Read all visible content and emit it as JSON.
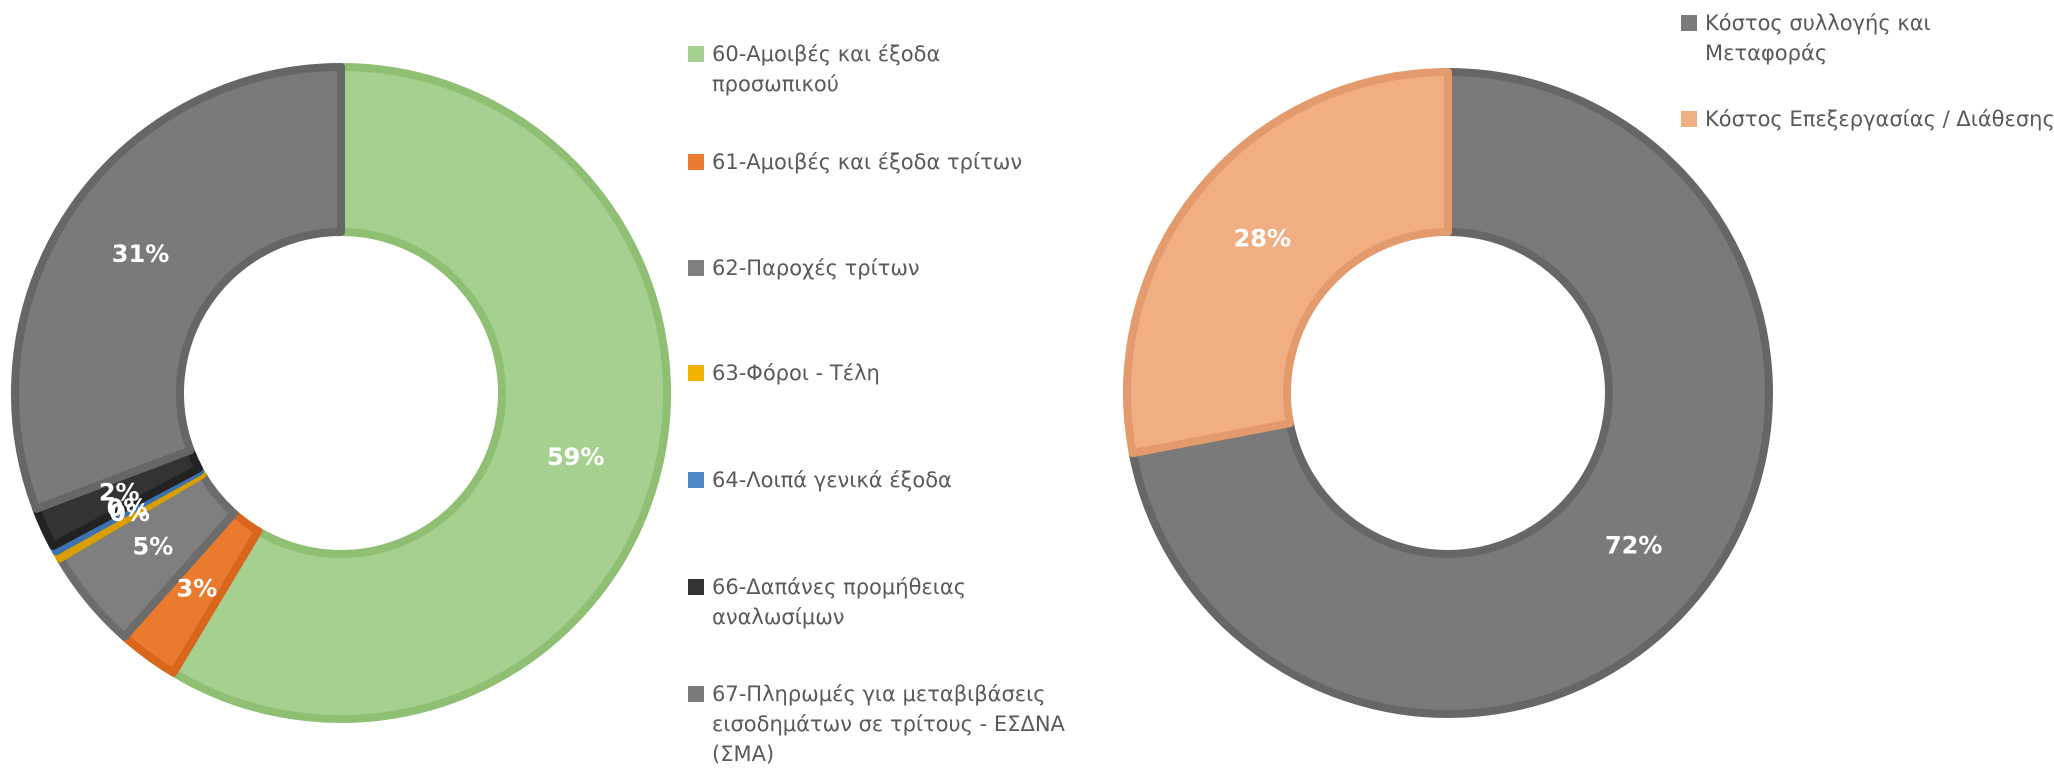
{
  "chart_data": [
    {
      "type": "pie",
      "categories": [
        "60-Αμοιβές και έξοδα προσωπικού",
        "61-Αμοιβές  και έξοδα τρίτων",
        "62-Παροχές τρίτων",
        "63-Φόροι - Τέλη",
        "64-Λοιπά γενικά έξοδα",
        "66-Δαπάνες προμήθειας αναλωσίμων",
        "67-Πληρωμές για μεταβιβάσεις εισοδημάτων σε τρίτους - ΕΣΔΝΑ (ΣΜΑ)"
      ],
      "values": [
        59,
        3,
        5,
        0.4,
        0.3,
        2,
        31
      ],
      "value_labels": [
        "59%",
        "3%",
        "5%",
        "0%",
        "0%",
        "2%",
        "31%"
      ],
      "colors": [
        "#a6d08f",
        "#ea7a2e",
        "#7f7f7f",
        "#f0b400",
        "#4f86c6",
        "#333333",
        "#7a7a7a"
      ]
    },
    {
      "type": "pie",
      "categories": [
        "Κόστος συλλογής και Μεταφοράς",
        "Κόστος Επεξεργασίας / Διάθεσης"
      ],
      "values": [
        72,
        28
      ],
      "value_labels": [
        "72%",
        "28%"
      ],
      "colors": [
        "#7a7a7a",
        "#f2ae83"
      ]
    }
  ]
}
